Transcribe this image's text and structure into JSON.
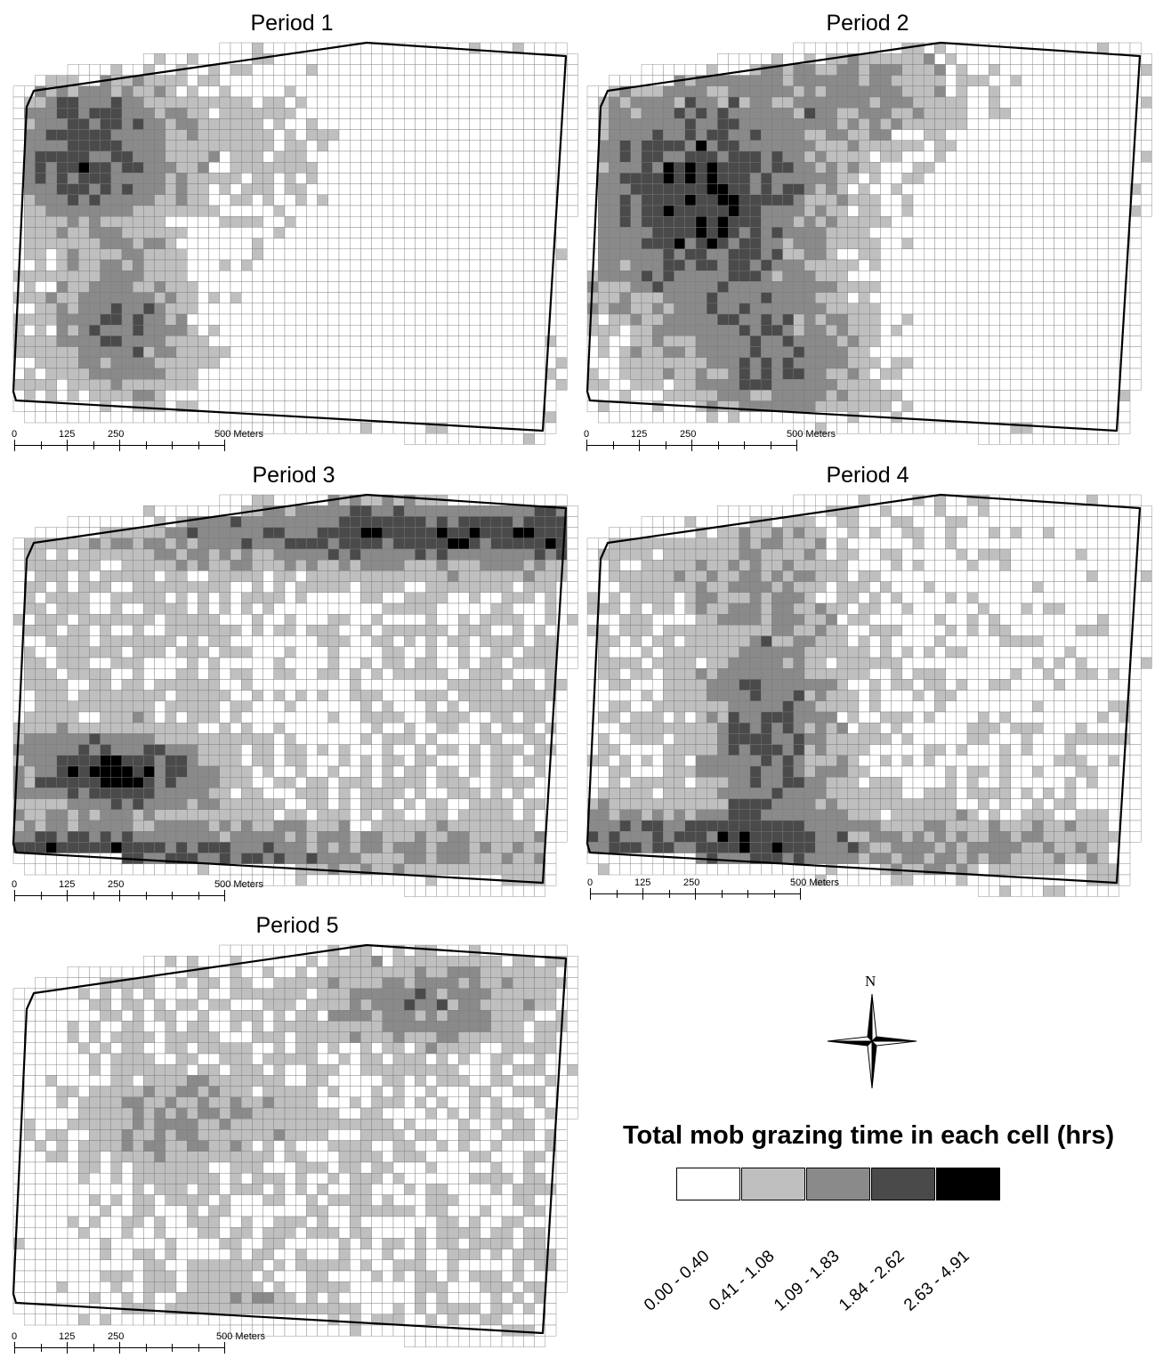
{
  "panels": [
    {
      "title": "Period 1",
      "seed": 11,
      "pattern": "p1"
    },
    {
      "title": "Period 2",
      "seed": 23,
      "pattern": "p2"
    },
    {
      "title": "Period 3",
      "seed": 37,
      "pattern": "p3"
    },
    {
      "title": "Period 4",
      "seed": 41,
      "pattern": "p4"
    },
    {
      "title": "Period 5",
      "seed": 53,
      "pattern": "p5"
    }
  ],
  "scale": {
    "labels": [
      "0",
      "125",
      "250",
      "500 Meters"
    ]
  },
  "north_label": "N",
  "legend": {
    "title": "Total mob grazing time in each cell (hrs)",
    "classes": [
      {
        "label": "0.00 - 0.40",
        "color": "#ffffff"
      },
      {
        "label": "0.41 - 1.08",
        "color": "#bfbfbf"
      },
      {
        "label": "1.09 - 1.83",
        "color": "#8a8a8a"
      },
      {
        "label": "1.84 - 2.62",
        "color": "#4a4a4a"
      },
      {
        "label": "2.63 - 4.91",
        "color": "#000000"
      }
    ]
  }
}
